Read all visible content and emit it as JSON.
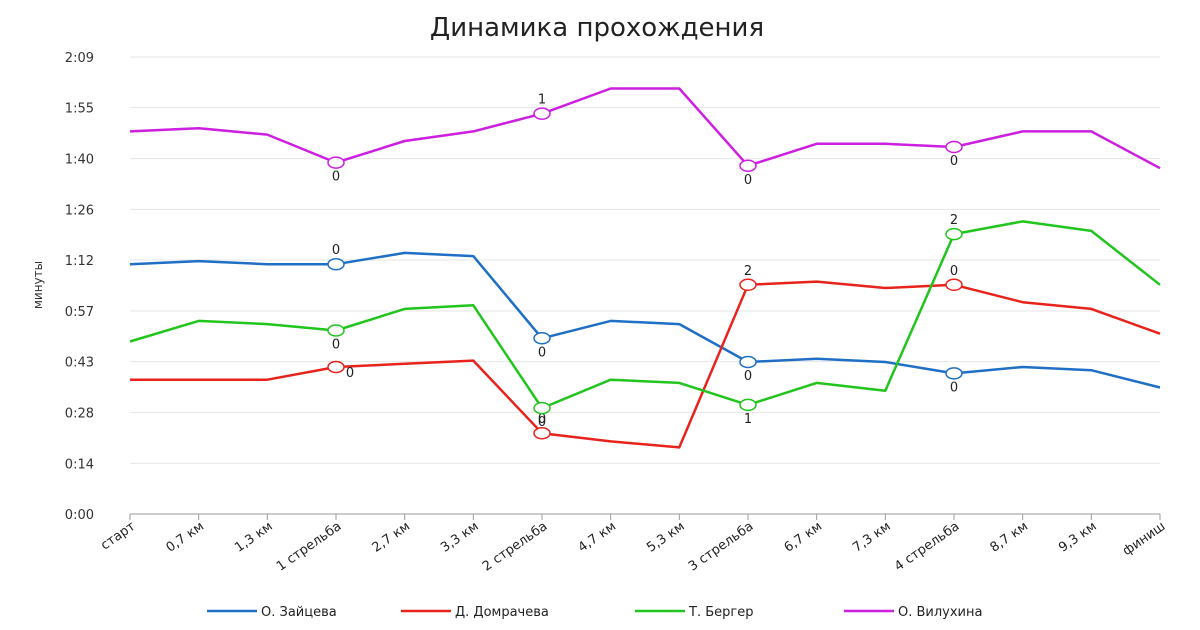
{
  "chart_data": {
    "type": "line",
    "title": "Динамика прохождения",
    "xlabel": "",
    "ylabel": "минуты",
    "y_ticks": [
      "0:00",
      "0:14",
      "0:28",
      "0:43",
      "0:57",
      "1:12",
      "1:26",
      "1:40",
      "1:55",
      "2:09"
    ],
    "y_tick_values_seconds": [
      0,
      14.3,
      28.7,
      43,
      57.3,
      71.7,
      86,
      100.3,
      114.7,
      129
    ],
    "ylim_seconds": [
      0,
      129
    ],
    "grid": true,
    "legend_position": "bottom",
    "categories": [
      "старт",
      "0,7 км",
      "1,3 км",
      "1 стрельба",
      "2,7 км",
      "3,3 км",
      "2 стрельба",
      "4,7 км",
      "5,3 км",
      "3 стрельба",
      "6,7 км",
      "7,3 км",
      "4 стрельба",
      "8,7 км",
      "9,3 км",
      "финиш"
    ],
    "value_units": "seconds",
    "series": [
      {
        "name": "О. Зайцева",
        "color": "#1f6fc5",
        "values": [
          70.5,
          71.4,
          70.5,
          70.5,
          73.7,
          72.8,
          49.6,
          54.5,
          53.6,
          42.9,
          43.8,
          42.9,
          39.7,
          41.5,
          40.6,
          35.7
        ],
        "markers": [
          {
            "index": 3,
            "label": "0"
          },
          {
            "index": 6,
            "label": "0"
          },
          {
            "index": 9,
            "label": "0"
          },
          {
            "index": 12,
            "label": "0"
          }
        ]
      },
      {
        "name": "Д. Домрачева",
        "color": "#e8231c",
        "values": [
          37.9,
          37.9,
          37.9,
          41.5,
          42.4,
          43.3,
          22.8,
          20.5,
          18.8,
          64.7,
          65.6,
          63.8,
          64.7,
          59.8,
          57.9,
          50.9
        ],
        "markers": [
          {
            "index": 3,
            "label": "0"
          },
          {
            "index": 6,
            "label": "0"
          },
          {
            "index": 9,
            "label": "2"
          },
          {
            "index": 12,
            "label": "0"
          }
        ]
      },
      {
        "name": "Т. Бергер",
        "color": "#22c41e",
        "values": [
          48.7,
          54.5,
          53.6,
          51.8,
          57.9,
          58.9,
          29.9,
          37.9,
          37.0,
          30.8,
          37.0,
          34.8,
          79.0,
          82.6,
          79.9,
          64.7
        ],
        "markers": [
          {
            "index": 3,
            "label": "0"
          },
          {
            "index": 6,
            "label": "0"
          },
          {
            "index": 9,
            "label": "1"
          },
          {
            "index": 12,
            "label": "2"
          }
        ]
      },
      {
        "name": "О. Вилухина",
        "color": "#cc1fe0",
        "values": [
          108.0,
          108.9,
          107.1,
          99.2,
          105.3,
          108.0,
          113.0,
          120.1,
          120.1,
          98.3,
          104.5,
          104.5,
          103.6,
          108.0,
          108.0,
          97.6
        ],
        "markers": [
          {
            "index": 3,
            "label": "0"
          },
          {
            "index": 6,
            "label": "1"
          },
          {
            "index": 9,
            "label": "0"
          },
          {
            "index": 12,
            "label": "0"
          }
        ]
      }
    ]
  }
}
